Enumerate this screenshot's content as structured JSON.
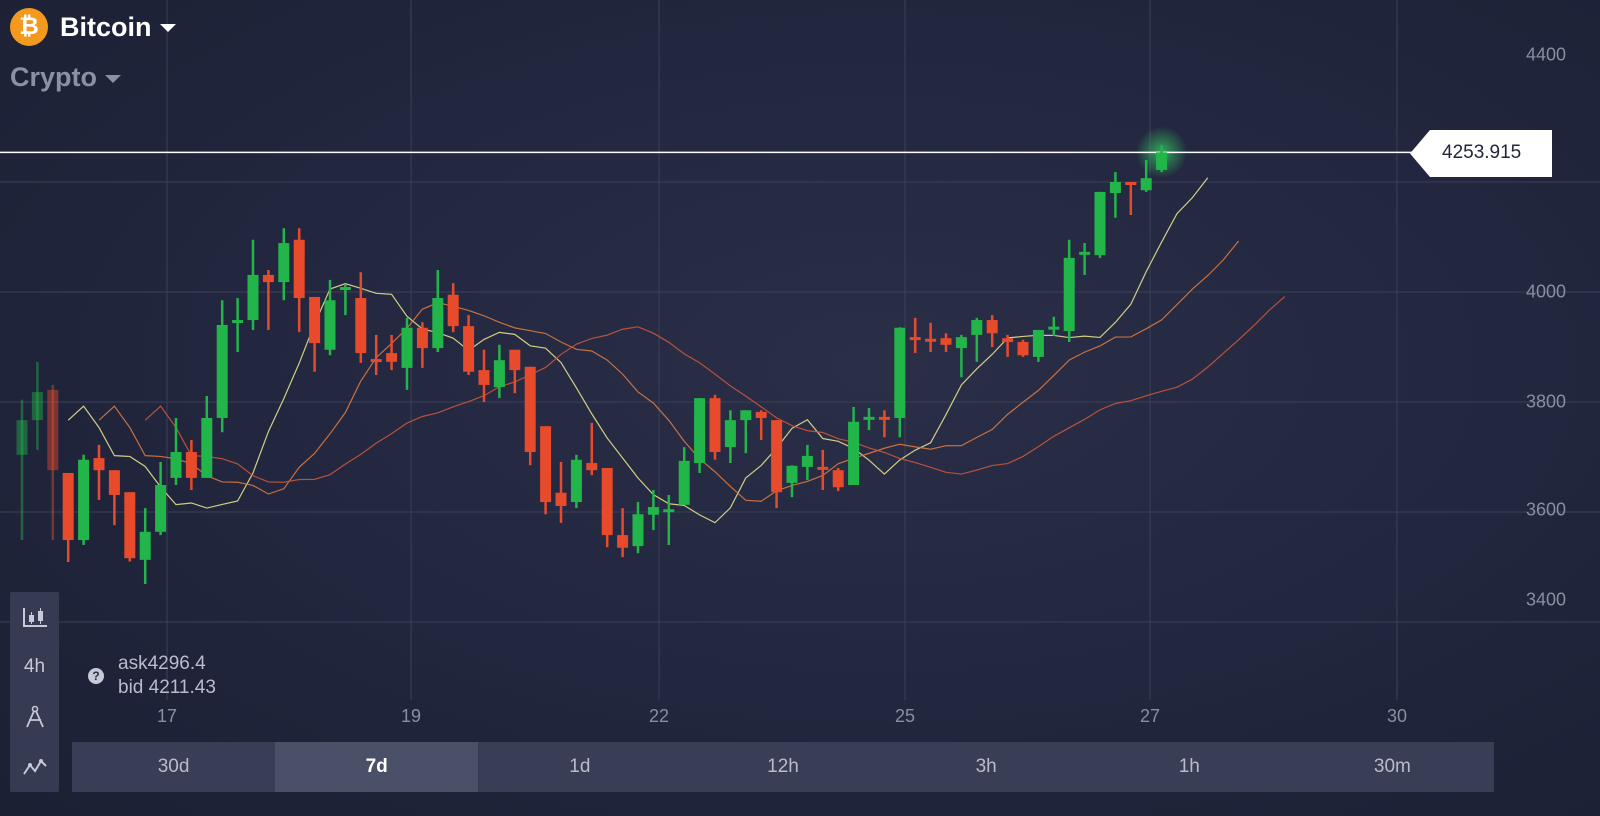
{
  "header": {
    "asset": "Bitcoin",
    "asset_icon": "bitcoin-icon",
    "coin_symbol": "₿",
    "category": "Crypto"
  },
  "price_tag": "4253.915",
  "y_axis_labels": [
    "4400",
    "4000",
    "3800",
    "3600",
    "3400"
  ],
  "x_axis_labels": [
    "17",
    "19",
    "22",
    "25",
    "27",
    "30"
  ],
  "quote": {
    "ask": "ask4296.4",
    "bid": "bid 4211.43"
  },
  "tools": [
    {
      "icon": "candlestick-chart-icon"
    },
    {
      "label": "4h"
    },
    {
      "icon": "drawing-compass-icon"
    },
    {
      "icon": "indicators-icon"
    }
  ],
  "timeframes": [
    {
      "label": "30d"
    },
    {
      "label": "7d",
      "selected": true
    },
    {
      "label": "1d"
    },
    {
      "label": "12h"
    },
    {
      "label": "3h"
    },
    {
      "label": "1h"
    },
    {
      "label": "30m"
    }
  ],
  "colors": {
    "up": "#22b54a",
    "down": "#e84a2c",
    "ma": [
      "#e6e08a",
      "#d9783f",
      "#c9553a"
    ],
    "price_line": "#ffffff",
    "coin": "#f39a1e"
  },
  "chart_data": {
    "type": "candlestick",
    "candle_interval": "4h",
    "ylim": [
      3300,
      4450
    ],
    "current_price": 4253.915,
    "candles_ohlc": [
      [
        3704,
        3804,
        3549,
        3767
      ],
      [
        3767,
        3873,
        3713,
        3818
      ],
      [
        3822,
        3831,
        3549,
        3676
      ],
      [
        3671,
        3671,
        3509,
        3549
      ],
      [
        3549,
        3704,
        3540,
        3695
      ],
      [
        3698,
        3722,
        3622,
        3676
      ],
      [
        3676,
        3676,
        3576,
        3631
      ],
      [
        3636,
        3636,
        3510,
        3516
      ],
      [
        3513,
        3607,
        3469,
        3564
      ],
      [
        3564,
        3691,
        3558,
        3649
      ],
      [
        3662,
        3771,
        3649,
        3709
      ],
      [
        3709,
        3731,
        3640,
        3662
      ],
      [
        3662,
        3811,
        3662,
        3771
      ],
      [
        3771,
        3985,
        3745,
        3940
      ],
      [
        3945,
        3989,
        3891,
        3949
      ],
      [
        3949,
        4095,
        3931,
        4031
      ],
      [
        4031,
        4040,
        3931,
        4018
      ],
      [
        4018,
        4116,
        3985,
        4089
      ],
      [
        4095,
        4116,
        3927,
        3989
      ],
      [
        3991,
        3991,
        3855,
        3907
      ],
      [
        3895,
        4022,
        3885,
        3985
      ],
      [
        4005,
        4013,
        3958,
        4009
      ],
      [
        3989,
        4036,
        3871,
        3889
      ],
      [
        3878,
        3922,
        3849,
        3874
      ],
      [
        3889,
        3922,
        3858,
        3873
      ],
      [
        3862,
        3953,
        3822,
        3935
      ],
      [
        3935,
        3945,
        3862,
        3898
      ],
      [
        3898,
        4040,
        3891,
        3989
      ],
      [
        3995,
        4016,
        3927,
        3938
      ],
      [
        3938,
        3958,
        3849,
        3855
      ],
      [
        3858,
        3895,
        3800,
        3831
      ],
      [
        3827,
        3904,
        3807,
        3876
      ],
      [
        3895,
        3895,
        3816,
        3858
      ],
      [
        3864,
        3864,
        3685,
        3709
      ],
      [
        3756,
        3756,
        3596,
        3618
      ],
      [
        3635,
        3691,
        3580,
        3611
      ],
      [
        3618,
        3704,
        3607,
        3695
      ],
      [
        3689,
        3762,
        3667,
        3676
      ],
      [
        3680,
        3680,
        3536,
        3558
      ],
      [
        3558,
        3607,
        3518,
        3535
      ],
      [
        3538,
        3618,
        3525,
        3596
      ],
      [
        3595,
        3640,
        3567,
        3609
      ],
      [
        3602,
        3631,
        3540,
        3605
      ],
      [
        3613,
        3718,
        3613,
        3693
      ],
      [
        3689,
        3807,
        3671,
        3807
      ],
      [
        3807,
        3813,
        3695,
        3709
      ],
      [
        3718,
        3785,
        3689,
        3767
      ],
      [
        3767,
        3785,
        3707,
        3785
      ],
      [
        3782,
        3785,
        3731,
        3771
      ],
      [
        3767,
        3767,
        3607,
        3636
      ],
      [
        3653,
        3685,
        3627,
        3684
      ],
      [
        3682,
        3722,
        3658,
        3702
      ],
      [
        3682,
        3713,
        3640,
        3678
      ],
      [
        3676,
        3680,
        3638,
        3645
      ],
      [
        3649,
        3791,
        3649,
        3764
      ],
      [
        3769,
        3789,
        3749,
        3773
      ],
      [
        3773,
        3785,
        3736,
        3769
      ],
      [
        3771,
        3936,
        3736,
        3935
      ],
      [
        3918,
        3953,
        3889,
        3914
      ],
      [
        3915,
        3944,
        3891,
        3911
      ],
      [
        3916,
        3925,
        3891,
        3904
      ],
      [
        3898,
        3922,
        3845,
        3918
      ],
      [
        3922,
        3953,
        3873,
        3949
      ],
      [
        3949,
        3958,
        3900,
        3925
      ],
      [
        3916,
        3922,
        3882,
        3909
      ],
      [
        3909,
        3913,
        3882,
        3885
      ],
      [
        3882,
        3931,
        3873,
        3931
      ],
      [
        3933,
        3955,
        3920,
        3937
      ],
      [
        3929,
        4095,
        3909,
        4062
      ],
      [
        4069,
        4089,
        4031,
        4073
      ],
      [
        4067,
        4182,
        4062,
        4182
      ],
      [
        4180,
        4218,
        4135,
        4200
      ],
      [
        4200,
        4200,
        4140,
        4196
      ],
      [
        4185,
        4240,
        4182,
        4207
      ],
      [
        4222,
        4267,
        4218,
        4254
      ]
    ],
    "moving_averages": 3,
    "grid": true
  }
}
